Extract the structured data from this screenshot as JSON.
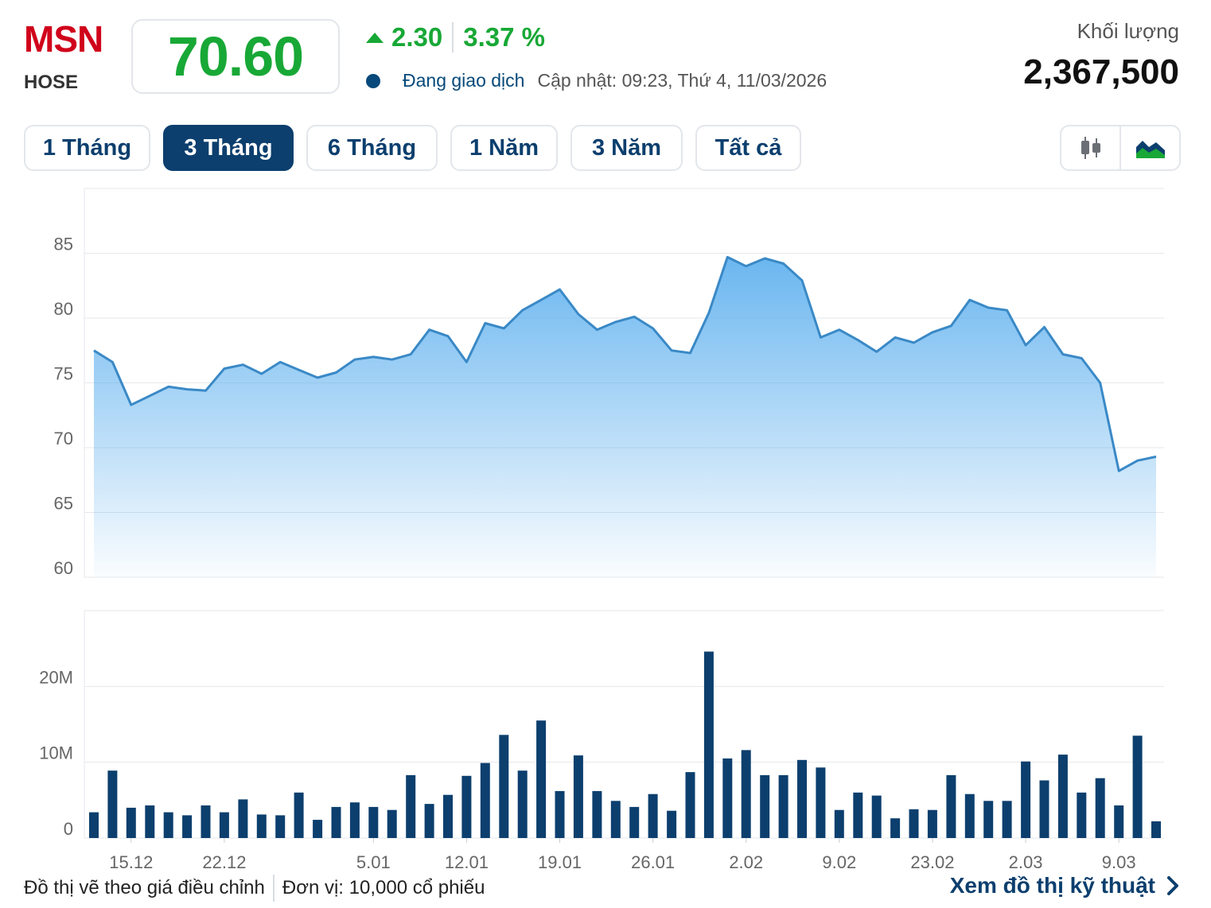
{
  "header": {
    "ticker": "MSN",
    "exchange": "HOSE",
    "price": "70.60",
    "change": "2.30",
    "change_pct": "3.37 %",
    "status": "Đang giao dịch",
    "updated": "Cập nhật: 09:23, Thứ 4, 11/03/2026",
    "volume_label": "Khối lượng",
    "volume_value": "2,367,500"
  },
  "tabs": [
    {
      "label": "1 Tháng",
      "active": false
    },
    {
      "label": "3 Tháng",
      "active": true
    },
    {
      "label": "6 Tháng",
      "active": false
    },
    {
      "label": "1 Năm",
      "active": false
    },
    {
      "label": "3 Năm",
      "active": false
    },
    {
      "label": "Tất cả",
      "active": false
    }
  ],
  "chart_type_toggle": {
    "options": [
      "candlestick-icon",
      "area-chart-icon"
    ],
    "selected": "area-chart-icon"
  },
  "colors": {
    "up": "#18a836",
    "brand": "#d0021b",
    "navy": "#0c3f6e",
    "line": "#3a89c6",
    "volume_bar": "#0c3f6e"
  },
  "footer": {
    "note": "Đồ thị vẽ theo giá điều chỉnh",
    "unit": "Đơn vị: 10,000 cổ phiếu",
    "tech_link": "Xem đồ thị kỹ thuật"
  },
  "chart_data": [
    {
      "type": "area",
      "ylim": [
        60,
        90
      ],
      "grid": true,
      "y_ticks": [
        60,
        65,
        70,
        75,
        80,
        85
      ],
      "values": [
        77.5,
        76.6,
        73.3,
        74.0,
        74.7,
        74.5,
        74.4,
        76.1,
        76.4,
        75.7,
        76.6,
        76.0,
        75.4,
        75.8,
        76.8,
        77.0,
        76.8,
        77.2,
        79.1,
        78.6,
        76.6,
        79.6,
        79.2,
        80.6,
        81.4,
        82.2,
        80.3,
        79.1,
        79.7,
        80.1,
        79.2,
        77.5,
        77.3,
        80.4,
        84.7,
        84.0,
        84.6,
        84.2,
        82.9,
        78.5,
        79.1,
        78.3,
        77.4,
        78.5,
        78.1,
        78.9,
        79.4,
        81.4,
        80.8,
        80.6,
        77.9,
        79.3,
        77.2,
        76.9,
        75.0,
        68.2,
        69.0,
        69.3
      ],
      "x_ticks": [
        {
          "label": "15.12",
          "index": 2
        },
        {
          "label": "22.12",
          "index": 7
        },
        {
          "label": "5.01",
          "index": 15
        },
        {
          "label": "12.01",
          "index": 20
        },
        {
          "label": "19.01",
          "index": 25
        },
        {
          "label": "26.01",
          "index": 30
        },
        {
          "label": "2.02",
          "index": 35
        },
        {
          "label": "9.02",
          "index": 40
        },
        {
          "label": "23.02",
          "index": 45
        },
        {
          "label": "2.03",
          "index": 50
        },
        {
          "label": "9.03",
          "index": 55
        }
      ]
    },
    {
      "type": "bar",
      "ylim": [
        0,
        30000000
      ],
      "grid": true,
      "y_ticks": [
        {
          "value": 0,
          "label": "0"
        },
        {
          "value": 10000000,
          "label": "10M"
        },
        {
          "value": 20000000,
          "label": "20M"
        }
      ],
      "values": [
        3400000,
        8900000,
        4000000,
        4300000,
        3400000,
        3000000,
        4300000,
        3400000,
        5100000,
        3100000,
        3000000,
        6000000,
        2400000,
        4100000,
        4700000,
        4100000,
        3700000,
        8300000,
        4500000,
        5700000,
        8200000,
        9900000,
        13600000,
        8900000,
        15500000,
        6200000,
        10900000,
        6200000,
        4900000,
        4100000,
        5800000,
        3600000,
        8700000,
        24600000,
        10500000,
        11600000,
        8300000,
        8300000,
        10300000,
        9300000,
        3700000,
        6000000,
        5600000,
        2600000,
        3800000,
        3700000,
        8300000,
        5800000,
        4900000,
        4900000,
        10100000,
        7600000,
        11000000,
        6000000,
        7900000,
        4300000,
        13500000,
        2200000
      ]
    }
  ]
}
